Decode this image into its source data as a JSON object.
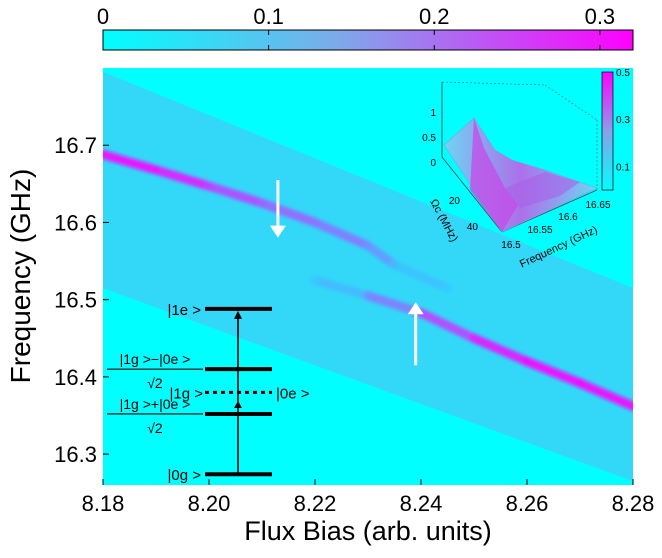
{
  "chart_data": {
    "type": "heatmap",
    "xlabel": "Flux Bias (arb. units)",
    "ylabel": "Frequency (GHz)",
    "xlim": [
      8.18,
      8.28
    ],
    "ylim": [
      16.26,
      16.8
    ],
    "x_ticks": [
      "8.18",
      "8.20",
      "8.22",
      "8.24",
      "8.26",
      "8.28"
    ],
    "x_tick_values": [
      8.18,
      8.2,
      8.22,
      8.24,
      8.26,
      8.28
    ],
    "y_ticks": [
      "16.3",
      "16.4",
      "16.5",
      "16.6",
      "16.7"
    ],
    "y_tick_values": [
      16.3,
      16.4,
      16.5,
      16.6,
      16.7
    ],
    "colorbar": {
      "orientation": "horizontal",
      "range": [
        0,
        0.32
      ],
      "ticks": [
        "0",
        "0.1",
        "0.2",
        "0.3"
      ],
      "tick_values": [
        0,
        0.1,
        0.2,
        0.3
      ],
      "colors": [
        "#00ffff",
        "#ff00ff"
      ]
    },
    "band": {
      "top_edge": [
        {
          "x": 8.18,
          "y": 16.795
        },
        {
          "x": 8.28,
          "y": 16.515
        }
      ],
      "bottom_edge": [
        {
          "x": 8.18,
          "y": 16.515
        },
        {
          "x": 8.28,
          "y": 16.265
        }
      ]
    },
    "series": [
      {
        "points": [
          [
            8.18,
            16.688
          ],
          [
            8.19,
            16.668
          ],
          [
            8.2,
            16.647
          ],
          [
            8.21,
            16.625
          ],
          [
            8.22,
            16.6
          ],
          [
            8.23,
            16.57
          ],
          [
            8.235,
            16.545
          ],
          [
            8.245,
            16.515
          ]
        ],
        "intensity": [
          0.3,
          0.3,
          0.25,
          0.2,
          0.18,
          0.15,
          0.1,
          0.05
        ]
      },
      {
        "points": [
          [
            8.22,
            16.525
          ],
          [
            8.23,
            16.505
          ],
          [
            8.24,
            16.483
          ],
          [
            8.25,
            16.45
          ],
          [
            8.26,
            16.42
          ],
          [
            8.27,
            16.392
          ],
          [
            8.28,
            16.362
          ]
        ],
        "intensity": [
          0.05,
          0.12,
          0.2,
          0.26,
          0.3,
          0.3,
          0.3
        ]
      }
    ],
    "arrows": [
      {
        "x": 8.213,
        "y_from": 16.655,
        "y_to": 16.583,
        "direction": "down",
        "color": "#ffffff"
      },
      {
        "x": 8.239,
        "y_from": 16.415,
        "y_to": 16.494,
        "direction": "up",
        "color": "#ffffff"
      }
    ],
    "energy_levels": [
      {
        "label": "|1e >",
        "y": 16.488
      },
      {
        "label_num": "|1g >−|0e >",
        "label_den": "√2",
        "y": 16.41
      },
      {
        "label_left": "|1g >",
        "label_right": "|0e >",
        "y": 16.38,
        "dotted": true
      },
      {
        "label_num": "|1g >+|0e >",
        "label_den": "√2",
        "y": 16.352
      },
      {
        "label": "|0g >",
        "y": 16.274
      }
    ],
    "inset": {
      "type": "surface",
      "zlim": [
        0,
        1
      ],
      "z_ticks": [
        "0",
        "0.5",
        "1"
      ],
      "omega_ticks": [
        "20",
        "40"
      ],
      "omega_label": "Ωc (MHz)",
      "freq_ticks": [
        "16.5",
        "16.55",
        "16.6",
        "16.65"
      ],
      "freq_label": "Frequency (GHz)",
      "colorbar_ticks": [
        "0.5",
        "0.3",
        "0.1"
      ],
      "colorbar_tick_values": [
        0.5,
        0.3,
        0.1
      ],
      "colorbar_range": [
        0,
        0.5
      ]
    }
  }
}
